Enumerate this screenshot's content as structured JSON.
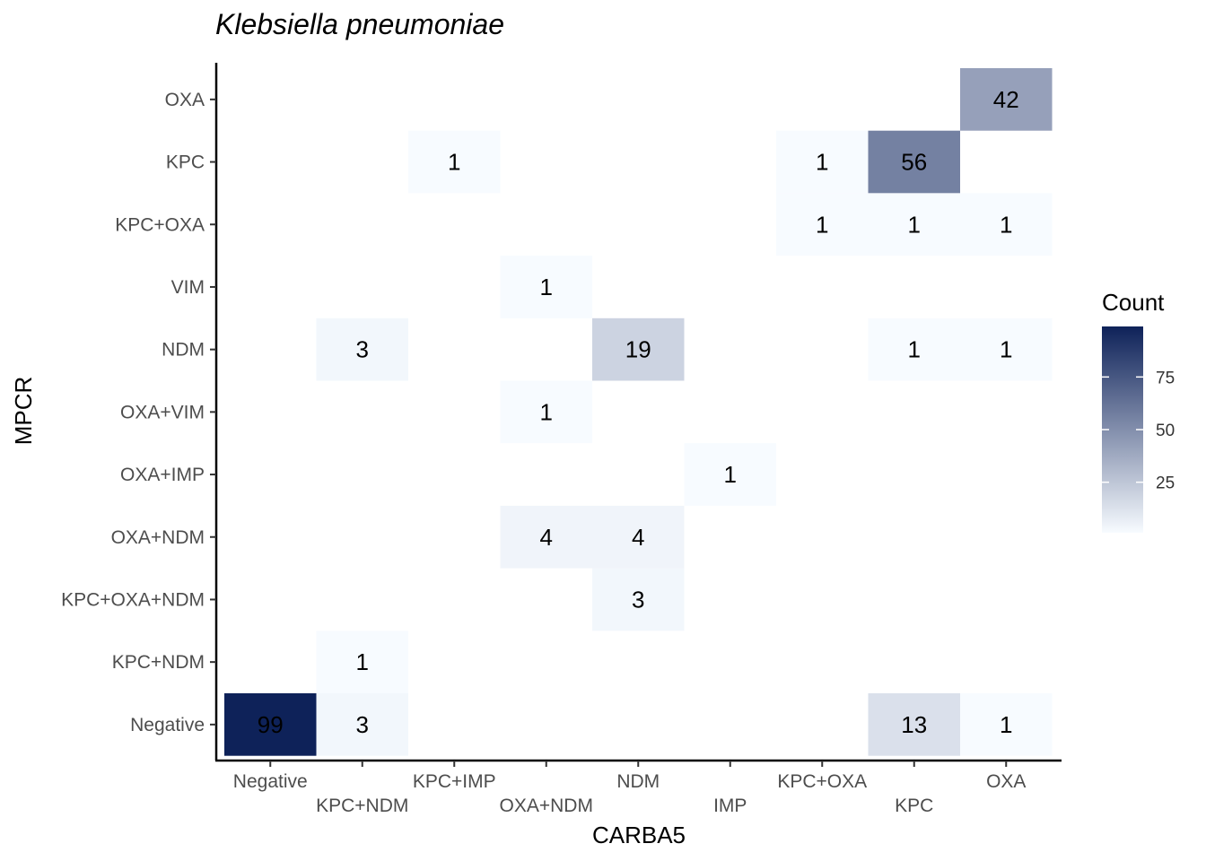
{
  "chart_data": {
    "type": "heatmap",
    "title": "Klebsiella pneumoniae",
    "xlabel": "CARBA5",
    "ylabel": "MPCR",
    "x_categories": [
      "Negative",
      "KPC+NDM",
      "KPC+IMP",
      "OXA+NDM",
      "NDM",
      "IMP",
      "KPC+OXA",
      "KPC",
      "OXA"
    ],
    "y_categories": [
      "OXA",
      "KPC",
      "KPC+OXA",
      "VIM",
      "NDM",
      "OXA+VIM",
      "OXA+IMP",
      "OXA+NDM",
      "KPC+OXA+NDM",
      "KPC+NDM",
      "Negative"
    ],
    "cells": [
      {
        "x": "OXA",
        "y": "OXA",
        "value": 42
      },
      {
        "x": "KPC+IMP",
        "y": "KPC",
        "value": 1
      },
      {
        "x": "KPC+OXA",
        "y": "KPC",
        "value": 1
      },
      {
        "x": "KPC",
        "y": "KPC",
        "value": 56
      },
      {
        "x": "KPC+OXA",
        "y": "KPC+OXA",
        "value": 1
      },
      {
        "x": "KPC",
        "y": "KPC+OXA",
        "value": 1
      },
      {
        "x": "OXA",
        "y": "KPC+OXA",
        "value": 1
      },
      {
        "x": "OXA+NDM",
        "y": "VIM",
        "value": 1
      },
      {
        "x": "KPC+NDM",
        "y": "NDM",
        "value": 3
      },
      {
        "x": "NDM",
        "y": "NDM",
        "value": 19
      },
      {
        "x": "KPC",
        "y": "NDM",
        "value": 1
      },
      {
        "x": "OXA",
        "y": "NDM",
        "value": 1
      },
      {
        "x": "OXA+NDM",
        "y": "OXA+VIM",
        "value": 1
      },
      {
        "x": "IMP",
        "y": "OXA+IMP",
        "value": 1
      },
      {
        "x": "OXA+NDM",
        "y": "OXA+NDM",
        "value": 4
      },
      {
        "x": "NDM",
        "y": "OXA+NDM",
        "value": 4
      },
      {
        "x": "NDM",
        "y": "KPC+OXA+NDM",
        "value": 3
      },
      {
        "x": "KPC+NDM",
        "y": "KPC+NDM",
        "value": 1
      },
      {
        "x": "Negative",
        "y": "Negative",
        "value": 99
      },
      {
        "x": "KPC+NDM",
        "y": "Negative",
        "value": 3
      },
      {
        "x": "KPC",
        "y": "Negative",
        "value": 13
      },
      {
        "x": "OXA",
        "y": "Negative",
        "value": 1
      }
    ],
    "legend": {
      "title": "Count",
      "ticks": [
        25,
        50,
        75
      ],
      "range": [
        1,
        99
      ],
      "low_color": "#f7fbff",
      "high_color": "#0e2259",
      "position": "right"
    },
    "grid": false
  }
}
